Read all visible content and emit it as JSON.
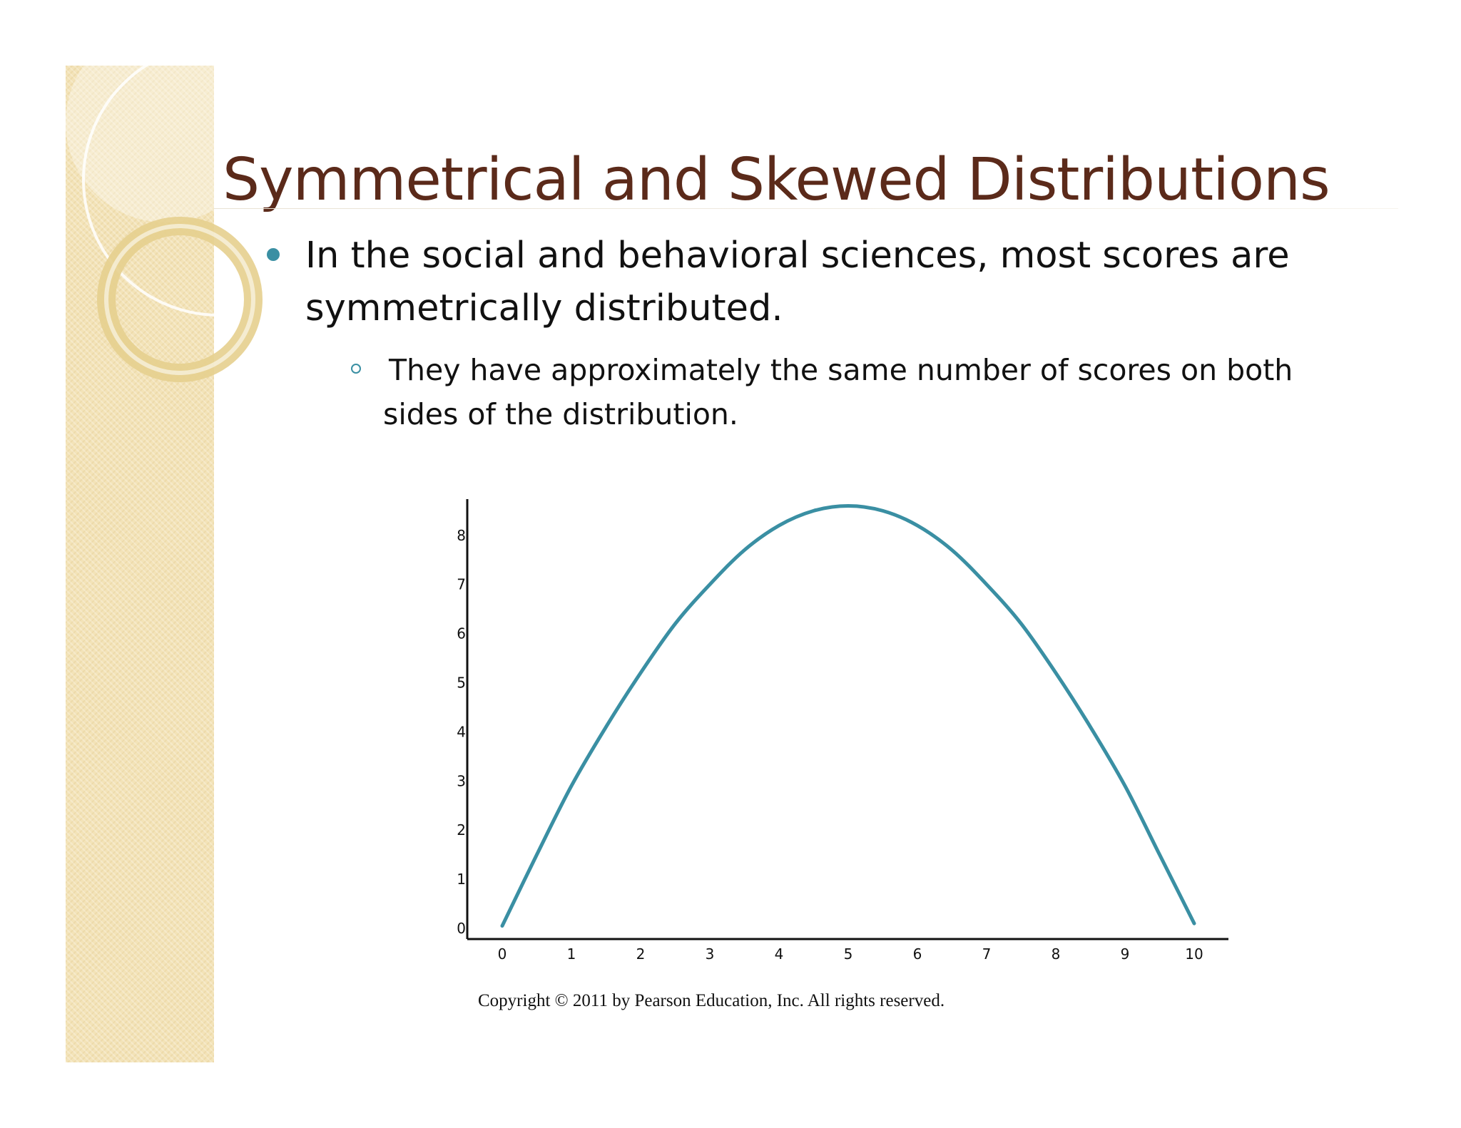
{
  "slide": {
    "title": "Symmetrical and Skewed Distributions",
    "bullet_level1": "In the social and behavioral sciences, most scores are symmetrically distributed.",
    "bullet_level2": "They have approximately the same number of scores on both sides of the distribution.",
    "copyright": "Copyright © 2011 by Pearson Education, Inc. All rights reserved.",
    "colors": {
      "title": "#5b2a1a",
      "accent": "#3a8fa3",
      "band": "#f3e3b8"
    }
  },
  "chart_data": {
    "type": "line",
    "title": "",
    "xlabel": "",
    "ylabel": "",
    "x_ticks": [
      "0",
      "1",
      "2",
      "3",
      "4",
      "5",
      "6",
      "7",
      "8",
      "9",
      "10"
    ],
    "y_ticks": [
      "0",
      "1",
      "2",
      "3",
      "4",
      "5",
      "6",
      "7",
      "8"
    ],
    "xlim": [
      -0.5,
      10.5
    ],
    "ylim": [
      -0.2,
      9
    ],
    "grid": false,
    "legend": "none",
    "series": [
      {
        "color": "#3a8fa3",
        "x": [
          0,
          0.5,
          1,
          1.5,
          2,
          2.5,
          3,
          3.5,
          4,
          4.5,
          5,
          5.5,
          6,
          6.5,
          7,
          7.5,
          8,
          8.5,
          9,
          9.5,
          10
        ],
        "y": [
          0.05,
          1.5,
          2.9,
          4.1,
          5.2,
          6.2,
          7.0,
          7.7,
          8.2,
          8.5,
          8.6,
          8.5,
          8.2,
          7.7,
          7.0,
          6.2,
          5.2,
          4.1,
          2.9,
          1.5,
          0.1
        ]
      }
    ]
  }
}
